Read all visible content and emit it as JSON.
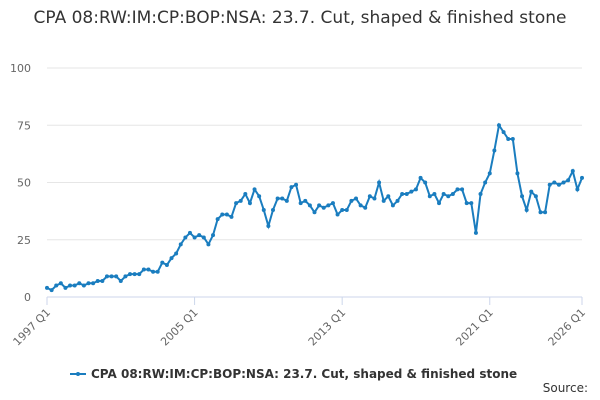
{
  "chart_data": {
    "type": "line",
    "title": "CPA 08:RW:IM:CP:BOP:NSA: 23.7. Cut, shaped & finished stone",
    "source": "Source:",
    "categories": [
      "1997 Q1",
      null,
      null,
      null,
      null,
      null,
      null,
      null,
      null,
      null,
      null,
      null,
      null,
      null,
      null,
      null,
      null,
      null,
      null,
      null,
      null,
      null,
      null,
      null,
      null,
      null,
      null,
      null,
      null,
      null,
      null,
      null,
      "2005 Q1",
      null,
      null,
      null,
      null,
      null,
      null,
      null,
      null,
      null,
      null,
      null,
      null,
      null,
      null,
      null,
      null,
      null,
      null,
      null,
      null,
      null,
      null,
      null,
      null,
      null,
      null,
      null,
      null,
      null,
      null,
      null,
      "2013 Q1",
      null,
      null,
      null,
      null,
      null,
      null,
      null,
      null,
      null,
      null,
      null,
      null,
      null,
      null,
      null,
      null,
      null,
      null,
      null,
      null,
      null,
      null,
      null,
      null,
      null,
      null,
      null,
      null,
      null,
      null,
      null,
      "2021 Q1",
      null,
      null,
      null,
      null,
      null,
      null,
      null,
      null,
      null,
      null,
      null,
      null,
      null,
      null,
      null,
      null,
      null,
      null,
      null,
      "2026 Q1"
    ],
    "series": [
      {
        "name": "CPA 08:RW:IM:CP:BOP:NSA: 23.7. Cut, shaped & finished stone",
        "color": "#1a7dbf",
        "values": [
          4,
          3,
          5,
          6,
          4,
          5,
          5,
          6,
          5,
          6,
          6,
          7,
          7,
          9,
          9,
          9,
          7,
          9,
          10,
          10,
          10,
          12,
          12,
          11,
          11,
          15,
          14,
          17,
          19,
          23,
          26,
          28,
          26,
          27,
          26,
          23,
          27,
          34,
          36,
          36,
          35,
          41,
          42,
          45,
          41,
          47,
          44,
          38,
          31,
          38,
          43,
          43,
          42,
          48,
          49,
          41,
          42,
          40,
          37,
          40,
          39,
          40,
          41,
          36,
          38,
          38,
          42,
          43,
          40,
          39,
          44,
          43,
          50,
          42,
          44,
          40,
          42,
          45,
          45,
          46,
          47,
          52,
          50,
          44,
          45,
          41,
          45,
          44,
          45,
          47,
          47,
          41,
          41,
          28,
          45,
          50,
          54,
          64,
          75,
          72,
          69,
          69,
          54,
          44,
          38,
          46,
          44,
          37,
          37,
          49,
          50,
          49,
          50,
          51,
          55,
          47,
          52
        ]
      }
    ],
    "ylim": [
      0,
      100
    ],
    "yticks": [
      0,
      25,
      50,
      75,
      100
    ],
    "grid": true
  }
}
